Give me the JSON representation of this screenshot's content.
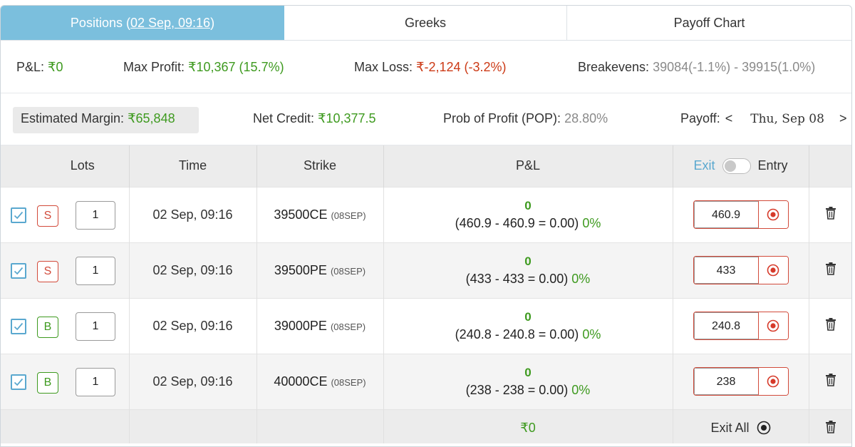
{
  "tabs": {
    "positions_label": "Positions",
    "positions_time": "02 Sep, 09:16",
    "greeks_label": "Greeks",
    "payoff_label": "Payoff Chart"
  },
  "summary": {
    "pnl_label": "P&L:",
    "pnl_value": "₹0",
    "max_profit_label": "Max Profit:",
    "max_profit_value": "₹10,367 (15.7%)",
    "max_loss_label": "Max Loss:",
    "max_loss_value": "₹-2,124 (-3.2%)",
    "breakevens_label": "Breakevens:",
    "breakevens_value": "39084(-1.1%) - 39915(1.0%)",
    "margin_label": "Estimated Margin:",
    "margin_value": "₹65,848",
    "net_credit_label": "Net Credit:",
    "net_credit_value": "₹10,377.5",
    "pop_label": "Prob of Profit (POP):",
    "pop_value": "28.80%",
    "payoff_label": "Payoff:",
    "payoff_prev": "<",
    "payoff_date": "Thu, Sep 08",
    "payoff_next": ">"
  },
  "table": {
    "headers": {
      "lots": "Lots",
      "time": "Time",
      "strike": "Strike",
      "pnl": "P&L",
      "exit": "Exit",
      "entry": "Entry"
    },
    "rows": [
      {
        "side": "S",
        "lots": "1",
        "time": "02 Sep, 09:16",
        "strike": "39500CE",
        "expiry": "(08SEP)",
        "pnl": "0",
        "calc": "(460.9 - 460.9 = 0.00)",
        "pct": "0%",
        "entry": "460.9"
      },
      {
        "side": "S",
        "lots": "1",
        "time": "02 Sep, 09:16",
        "strike": "39500PE",
        "expiry": "(08SEP)",
        "pnl": "0",
        "calc": "(433 - 433 = 0.00)",
        "pct": "0%",
        "entry": "433"
      },
      {
        "side": "B",
        "lots": "1",
        "time": "02 Sep, 09:16",
        "strike": "39000PE",
        "expiry": "(08SEP)",
        "pnl": "0",
        "calc": "(240.8 - 240.8 = 0.00)",
        "pct": "0%",
        "entry": "240.8"
      },
      {
        "side": "B",
        "lots": "1",
        "time": "02 Sep, 09:16",
        "strike": "40000CE",
        "expiry": "(08SEP)",
        "pnl": "0",
        "calc": "(238 - 238 = 0.00)",
        "pct": "0%",
        "entry": "238"
      }
    ],
    "footer": {
      "total_pnl": "₹0",
      "exit_all_label": "Exit All"
    }
  },
  "colors": {
    "accent": "#7bbfdd",
    "profit": "#3e9a1f",
    "loss": "#cc3a16",
    "sell": "#d24a3a"
  },
  "icons": {
    "checkbox": "checkbox-checked-icon",
    "record": "record-icon",
    "delete": "trash-icon",
    "radio": "radio-dot-icon"
  }
}
